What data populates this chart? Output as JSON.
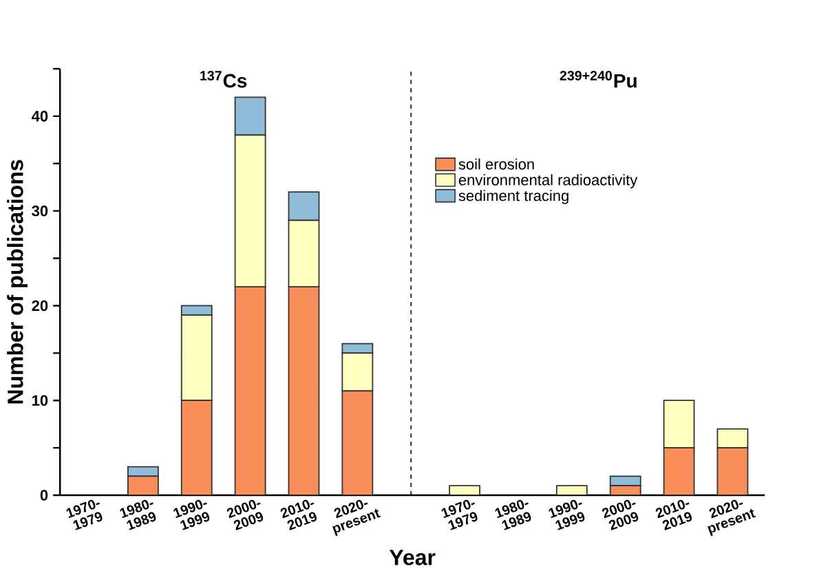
{
  "chart_data": {
    "type": "bar",
    "stacked": true,
    "categories": [
      "1970-1979",
      "1980-1989",
      "1990-1999",
      "2000-2009",
      "2010-2019",
      "2020-present",
      null,
      "1970-1979",
      "1980-1989",
      "1990-1999",
      "2000-2009",
      "2010-2019",
      "2020-present"
    ],
    "series": [
      {
        "name": "soil erosion",
        "color": "#fa8e5a",
        "values": [
          0,
          2,
          10,
          22,
          22,
          11,
          null,
          0,
          0,
          0,
          1,
          5,
          5
        ]
      },
      {
        "name": "environmental radioactivity",
        "color": "#ffffc0",
        "values": [
          0,
          0,
          9,
          16,
          7,
          4,
          null,
          1,
          0,
          1,
          0,
          5,
          2
        ]
      },
      {
        "name": "sediment tracing",
        "color": "#8fbcd8",
        "values": [
          0,
          1,
          1,
          4,
          3,
          1,
          null,
          0,
          0,
          0,
          1,
          0,
          0
        ]
      }
    ],
    "xlabel": "Year",
    "ylabel": "Number of publications",
    "ylim": [
      0,
      45
    ],
    "yticks": [
      0,
      {
        "value": 5,
        "label": null
      },
      10,
      {
        "value": 15,
        "label": null
      },
      20,
      {
        "value": 25,
        "label": null
      },
      30,
      {
        "value": 35,
        "label": null
      },
      40,
      {
        "value": 45,
        "label": null
      }
    ],
    "annotations": [
      "$^{137}$Cs",
      "$^{239+240}$Pu"
    ],
    "legend": "right"
  }
}
